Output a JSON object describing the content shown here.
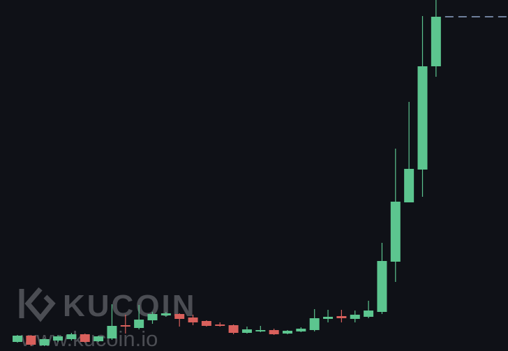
{
  "chart_data": {
    "type": "candlestick",
    "ylim": [
      0,
      503
    ],
    "up_color": "#5cc58f",
    "down_color": "#d9605c",
    "open": [
      13,
      22,
      8,
      15,
      17,
      24,
      14,
      18,
      37,
      33,
      44,
      51,
      53,
      48,
      43,
      38,
      37,
      26,
      28,
      30,
      25,
      28,
      30,
      46,
      50,
      46,
      49,
      56,
      128,
      213,
      260,
      408
    ],
    "close": [
      22,
      9,
      17,
      21,
      24,
      13,
      21,
      36,
      35,
      45,
      53,
      54,
      46,
      41,
      36,
      36,
      26,
      31,
      30,
      24,
      29,
      32,
      47,
      49,
      47,
      52,
      58,
      129,
      214,
      261,
      408,
      479
    ],
    "high": [
      23,
      23,
      18,
      23,
      26,
      25,
      22,
      67,
      52,
      66,
      56,
      56,
      54,
      52,
      44,
      41,
      38,
      35,
      36,
      32,
      30,
      34,
      60,
      59,
      59,
      58,
      72,
      155,
      290,
      357,
      480,
      503
    ],
    "low": [
      12,
      7,
      7,
      13,
      15,
      12,
      13,
      16,
      25,
      31,
      39,
      49,
      35,
      37,
      35,
      35,
      24,
      25,
      27,
      23,
      24,
      27,
      28,
      41,
      41,
      41,
      47,
      53,
      99,
      213,
      221,
      393
    ],
    "watermark": "KUCOIN",
    "watermark_url": "www.kucoin.io"
  }
}
